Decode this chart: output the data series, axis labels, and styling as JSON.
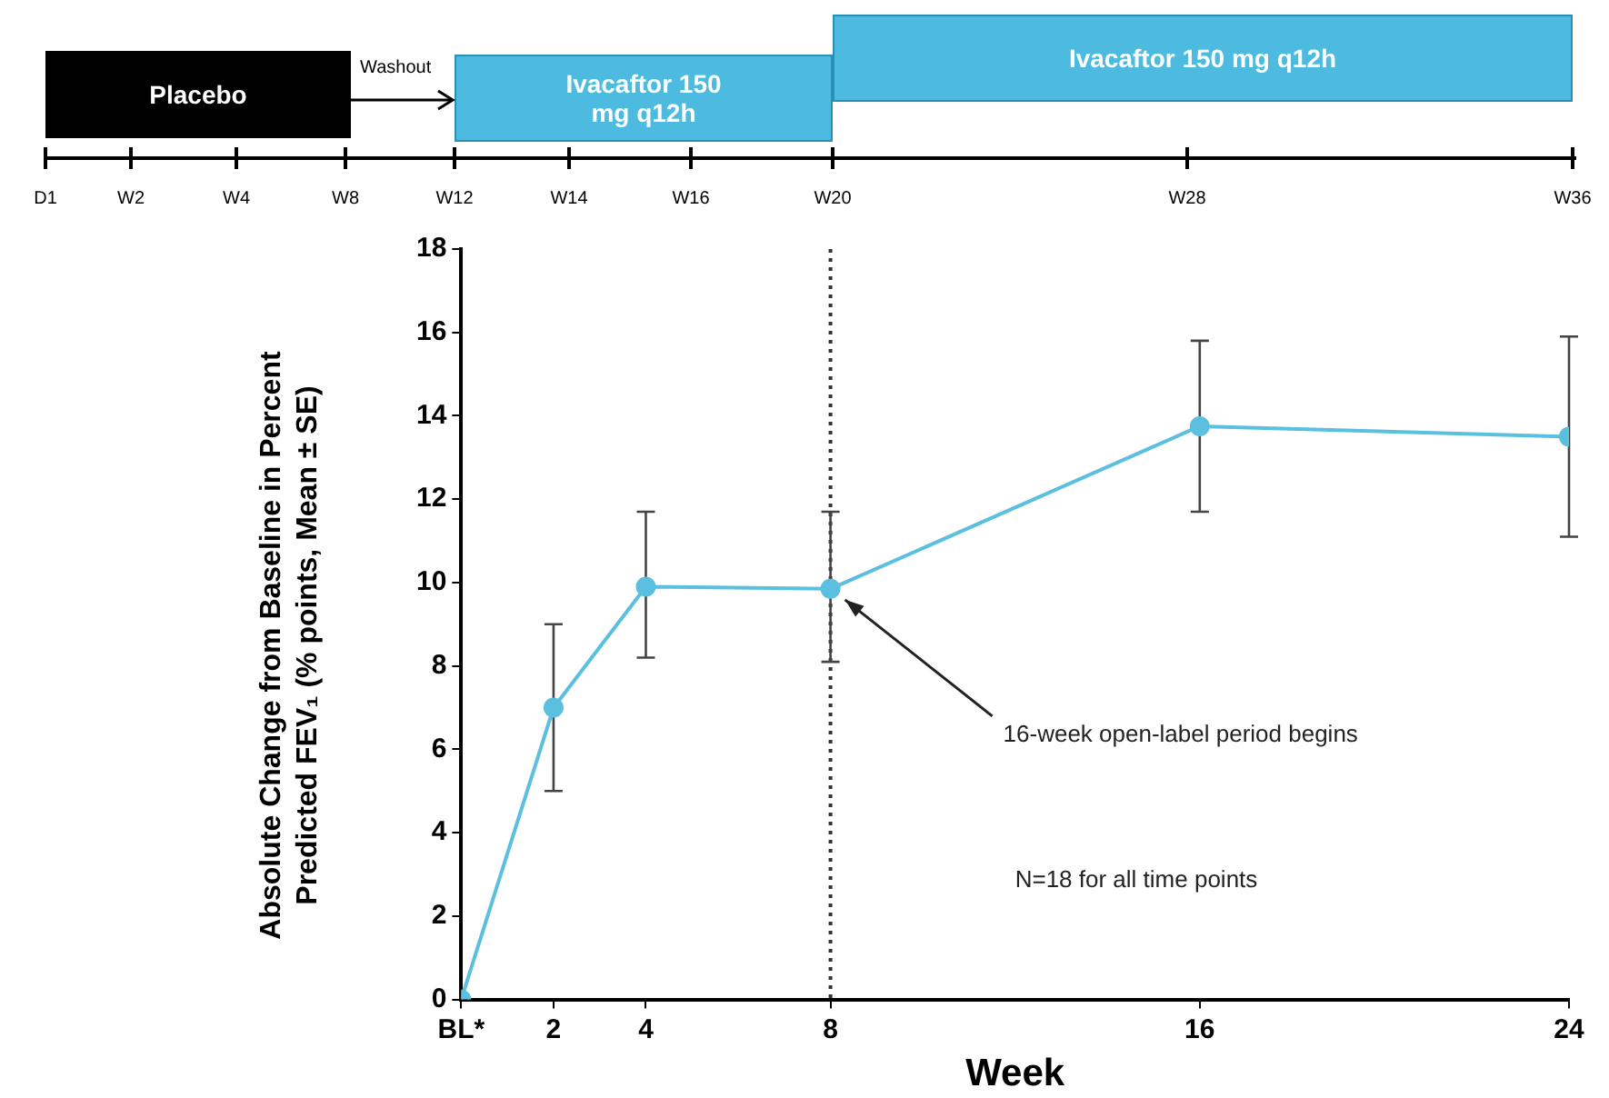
{
  "chart_data": {
    "type": "line",
    "xlabel": "Week",
    "ylabel": "Absolute Change from Baseline in Percent Predicted FEV₁ (% points, Mean ± SE)",
    "x": [
      0,
      2,
      4,
      8,
      16,
      24
    ],
    "series": [
      {
        "color": "#5bbfe0",
        "values": [
          0,
          7.0,
          9.9,
          9.85,
          13.75,
          13.5
        ],
        "errors": [
          null,
          [
            5.0,
            9.0
          ],
          [
            8.2,
            11.7
          ],
          [
            8.1,
            11.7
          ],
          [
            11.7,
            15.8
          ],
          [
            11.1,
            15.9
          ]
        ]
      }
    ],
    "xlim": [
      0,
      24
    ],
    "xticks": [
      {
        "value": 0,
        "label": "BL*"
      },
      2,
      4,
      8,
      16,
      24
    ],
    "ylim": [
      0,
      18
    ],
    "yticks": [
      0,
      2,
      4,
      6,
      8,
      10,
      12,
      14,
      16,
      18
    ],
    "grid": false,
    "legend": false,
    "marker": "circle",
    "line_style": "solid",
    "ref_lines": [
      {
        "axis": "x",
        "value": 8,
        "color": "#333333",
        "line_style": "dotted"
      }
    ],
    "annotations": [
      "16-week open-label period begins",
      "N=18 for all time points",
      "Placebo",
      "Washout",
      "Ivacaftor 150 mg q12h",
      "Ivacaftor 150 mg q12h",
      "D1",
      "W2",
      "W4",
      "W8",
      "W12",
      "W14",
      "W16",
      "W20",
      "W28",
      "W36"
    ]
  }
}
